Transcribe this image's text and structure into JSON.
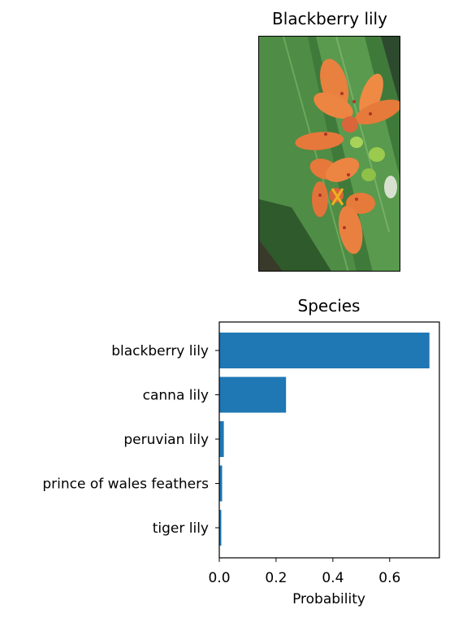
{
  "image_panel": {
    "title": "Blackberry lily"
  },
  "chart_data": {
    "type": "bar",
    "orientation": "horizontal",
    "title": "Species",
    "xlabel": "Probability",
    "ylabel": "",
    "categories": [
      "blackberry lily",
      "canna lily",
      "peruvian lily",
      "prince of wales feathers",
      "tiger lily"
    ],
    "values": [
      0.74,
      0.235,
      0.016,
      0.01,
      0.007
    ],
    "xlim": [
      0,
      0.775
    ],
    "xticks": [
      0.0,
      0.2,
      0.4,
      0.6
    ],
    "xtick_labels": [
      "0.0",
      "0.2",
      "0.4",
      "0.6"
    ],
    "bar_color": "#1f77b4",
    "grid": false
  }
}
